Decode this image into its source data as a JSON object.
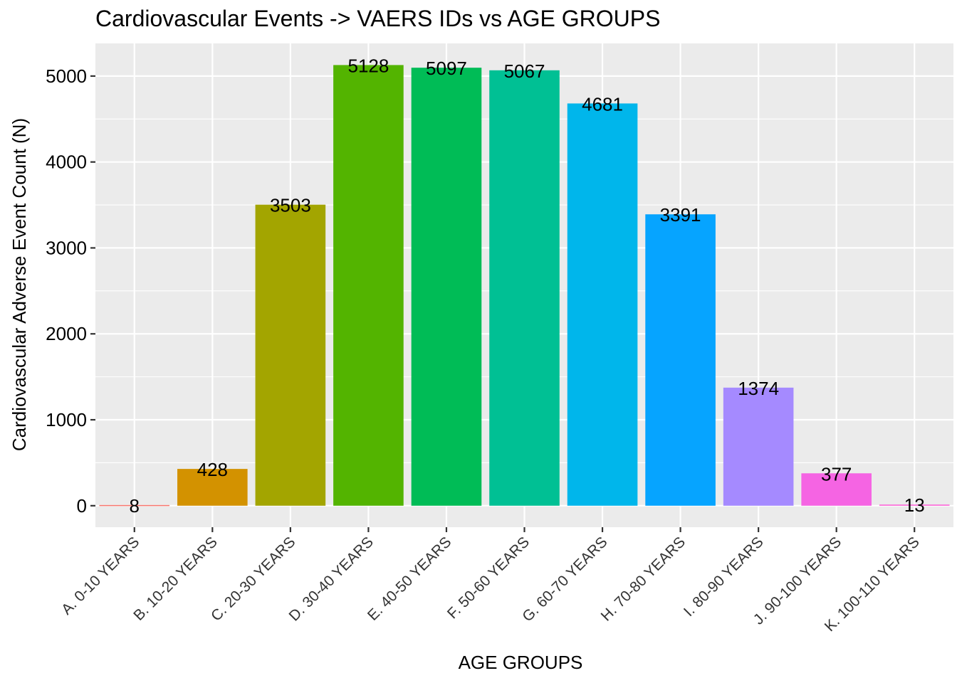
{
  "chart_data": {
    "type": "bar",
    "title": "Cardiovascular Events -> VAERS IDs vs AGE GROUPS",
    "xlabel": "AGE GROUPS",
    "ylabel": "Cardiovascular Adverse Event Count (N)",
    "categories": [
      "A. 0-10 YEARS",
      "B. 10-20 YEARS",
      "C. 20-30 YEARS",
      "D. 30-40 YEARS",
      "E. 40-50 YEARS",
      "F. 50-60 YEARS",
      "G. 60-70 YEARS",
      "H. 70-80 YEARS",
      "I. 80-90 YEARS",
      "J. 90-100 YEARS",
      "K. 100-110 YEARS"
    ],
    "values": [
      8,
      428,
      3503,
      5128,
      5097,
      5067,
      4681,
      3391,
      1374,
      377,
      13
    ],
    "colors": [
      "#F8766D",
      "#D39200",
      "#A3A500",
      "#53B400",
      "#00BC56",
      "#00C094",
      "#00B6EB",
      "#06A4FF",
      "#A58AFF",
      "#F564E3",
      "#FB61D7"
    ],
    "yticks": [
      0,
      1000,
      2000,
      3000,
      4000,
      5000
    ],
    "ylim": [
      -250,
      5380
    ],
    "grid": true,
    "legend": "none",
    "panel_color": "#EBEBEB",
    "grid_color": "#FFFFFF"
  }
}
